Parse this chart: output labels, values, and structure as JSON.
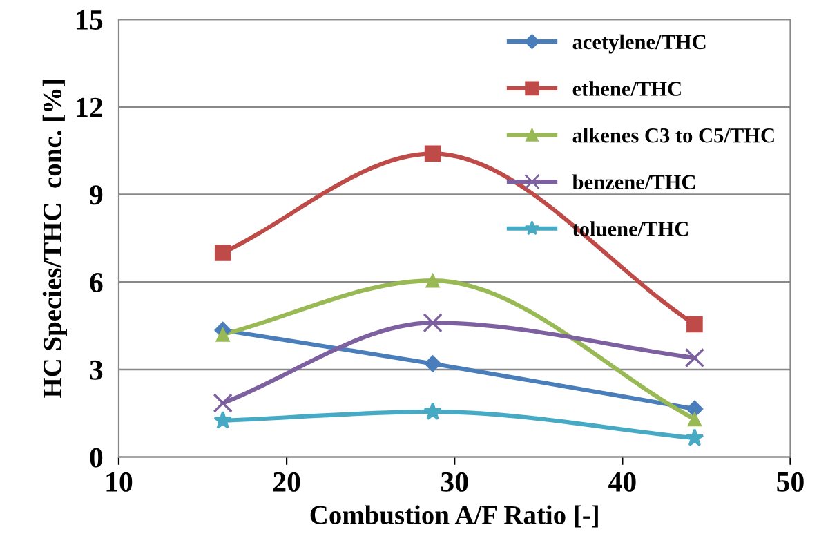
{
  "chart_data": {
    "type": "line",
    "xlabel": "Combustion A/F Ratio [-]",
    "ylabel": "HC Species/THC  conc. [%]",
    "x": [
      16.2,
      28.7,
      44.3
    ],
    "series": [
      {
        "name": "acetylene/THC",
        "color": "#4a7ebb",
        "marker": "diamond",
        "values": [
          4.35,
          3.2,
          1.65
        ]
      },
      {
        "name": "ethene/THC",
        "color": "#be4b48",
        "marker": "square",
        "values": [
          7.0,
          10.4,
          4.55
        ]
      },
      {
        "name": "alkenes C3 to C5/THC",
        "color": "#98b954",
        "marker": "triangle",
        "values": [
          4.2,
          6.05,
          1.3
        ]
      },
      {
        "name": "benzene/THC",
        "color": "#7d60a0",
        "marker": "cross",
        "values": [
          1.85,
          4.6,
          3.4
        ]
      },
      {
        "name": "toluene/THC",
        "color": "#46aac5",
        "marker": "star",
        "values": [
          1.25,
          1.55,
          0.65
        ]
      }
    ],
    "xlim": [
      10,
      50
    ],
    "xticks": [
      10,
      20,
      30,
      40,
      50
    ],
    "ylim": [
      0,
      15
    ],
    "yticks": [
      0,
      3,
      6,
      9,
      12,
      15
    ],
    "grid": "y",
    "legend": "top right"
  }
}
